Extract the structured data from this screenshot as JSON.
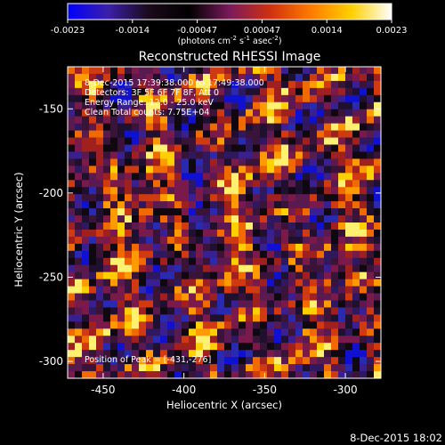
{
  "colorbar": {
    "ticks": [
      "-0.0023",
      "-0.0014",
      "-0.00047",
      "0.00047",
      "0.0014",
      "0.0023"
    ],
    "unit_main": "(photons cm",
    "unit_exp1": "-2",
    "unit_mid1": " s",
    "unit_exp2": "-1",
    "unit_mid2": " asec",
    "unit_exp3": "-2",
    "unit_end": ")",
    "colors": [
      "#0000ff",
      "#3b1fa8",
      "#1a0a1a",
      "#000000",
      "#7a1a5a",
      "#d03010",
      "#ff7a00",
      "#ffd000",
      "#ffffff"
    ]
  },
  "plot": {
    "title": "Reconstructed RHESSI Image",
    "info_line1": "8-Dec-2015 17:39:38.000 to 17:49:38.000",
    "info_line2": "Detectors: 3F 5F 6F 7F 8F, Att 0",
    "info_line3": "Energy Range: 12.0 - 25.0 keV",
    "info_line4": "Clean     Total counts: 7.75E+04",
    "peak_label": "Position of Peak = [-431,-276]",
    "xlabel": "Heliocentric X (arcsec)",
    "ylabel": "Heliocentric Y (arcsec)",
    "xticks": [
      "-450",
      "-400",
      "-350",
      "-300"
    ],
    "yticks": [
      "-150",
      "-200",
      "-250",
      "-300"
    ],
    "xticks_values": [
      -450,
      -400,
      -350,
      -300
    ],
    "yticks_values": [
      -150,
      -200,
      -250,
      -300
    ],
    "xrange": [
      -472,
      -278
    ],
    "yrange": [
      -310,
      -125
    ]
  },
  "footer": {
    "timestamp": "8-Dec-2015 18:02"
  }
}
